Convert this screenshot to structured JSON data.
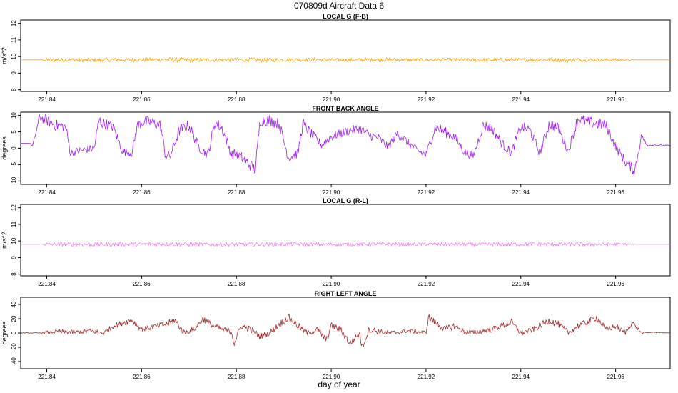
{
  "chart_data": {
    "title": "070809d    Aircraft Data 6",
    "xlabel": "day of year",
    "x_range": [
      221.8345,
      221.9715
    ],
    "x_ticks": [
      "221.84",
      "221.86",
      "221.88",
      "221.90",
      "221.92",
      "221.94",
      "221.96"
    ],
    "x_tick_values": [
      221.84,
      221.86,
      221.88,
      221.9,
      221.92,
      221.94,
      221.96
    ],
    "panels": [
      {
        "type": "line",
        "title": "LOCAL G (F-B)",
        "ylabel": "m/s^2",
        "ylim": [
          7.9,
          12.2
        ],
        "y_ticks": [
          "8",
          "9",
          "10",
          "11",
          "12"
        ],
        "y_tick_values": [
          8,
          9,
          10,
          11,
          12
        ],
        "color": "#FFA500",
        "series": [
          {
            "x": [
              221.8345,
              221.8385,
              221.84,
              221.845,
              221.85,
              221.855,
              221.86,
              221.865,
              221.87,
              221.875,
              221.88,
              221.885,
              221.89,
              221.895,
              221.9,
              221.905,
              221.91,
              221.915,
              221.92,
              221.925,
              221.93,
              221.935,
              221.94,
              221.945,
              221.95,
              221.955,
              221.96,
              221.9655,
              221.9715
            ],
            "y": [
              9.8,
              9.8,
              9.8,
              9.8,
              9.78,
              9.81,
              9.8,
              9.82,
              9.79,
              9.8,
              9.81,
              9.79,
              9.8,
              9.81,
              9.8,
              9.79,
              9.82,
              9.8,
              9.8,
              9.81,
              9.79,
              9.8,
              9.8,
              9.81,
              9.79,
              9.8,
              9.8,
              9.8,
              9.8
            ],
            "noise": [
              0.0,
              0.0,
              0.1,
              0.12,
              0.13,
              0.12,
              0.12,
              0.13,
              0.14,
              0.12,
              0.12,
              0.13,
              0.12,
              0.11,
              0.1,
              0.11,
              0.12,
              0.11,
              0.1,
              0.1,
              0.11,
              0.12,
              0.11,
              0.12,
              0.12,
              0.1,
              0.09,
              0.0,
              0.0
            ]
          }
        ]
      },
      {
        "type": "line",
        "title": "FRONT-BACK ANGLE",
        "ylabel": "degrees",
        "ylim": [
          -11,
          11
        ],
        "y_ticks": [
          "-10",
          "-5",
          "0",
          "5",
          "10"
        ],
        "y_tick_values": [
          -10,
          -5,
          0,
          5,
          10
        ],
        "color": "#A020F0",
        "series": [
          {
            "x": [
              221.8345,
              221.8365,
              221.837,
              221.8385,
              221.84,
              221.842,
              221.844,
              221.845,
              221.846,
              221.848,
              221.85,
              221.851,
              221.852,
              221.854,
              221.856,
              221.858,
              221.859,
              221.86,
              221.862,
              221.864,
              221.865,
              221.866,
              221.868,
              221.87,
              221.872,
              221.874,
              221.8755,
              221.877,
              221.879,
              221.88,
              221.882,
              221.884,
              221.885,
              221.887,
              221.889,
              221.891,
              221.893,
              221.894,
              221.896,
              221.898,
              221.9,
              221.902,
              221.904,
              221.906,
              221.908,
              221.91,
              221.912,
              221.914,
              221.916,
              221.918,
              221.92,
              221.922,
              221.924,
              221.926,
              221.928,
              221.93,
              221.932,
              221.934,
              221.936,
              221.938,
              221.94,
              221.942,
              221.944,
              221.946,
              221.948,
              221.95,
              221.952,
              221.954,
              221.956,
              221.958,
              221.96,
              221.962,
              221.964,
              221.9655,
              221.9665,
              221.968,
              221.9715
            ],
            "y": [
              1.5,
              1.5,
              0.5,
              9.5,
              8.5,
              7.0,
              6.5,
              -1.5,
              -1.0,
              -0.5,
              0.0,
              8.5,
              7.5,
              6.5,
              -1.0,
              -1.5,
              6.5,
              8.0,
              8.0,
              7.0,
              -2.0,
              -2.5,
              5.5,
              7.0,
              0.5,
              -2.0,
              8.0,
              6.0,
              -2.0,
              -1.5,
              -4.0,
              -6.5,
              8.5,
              8.5,
              7.5,
              -3.0,
              -1.5,
              7.5,
              4.0,
              1.0,
              3.5,
              4.5,
              5.5,
              6.0,
              4.0,
              3.0,
              0.5,
              4.5,
              2.0,
              -0.5,
              -2.0,
              6.5,
              5.0,
              3.5,
              -1.0,
              -2.5,
              7.0,
              6.0,
              1.5,
              -1.5,
              6.5,
              5.5,
              -1.5,
              7.5,
              6.0,
              -1.0,
              9.0,
              8.0,
              7.5,
              7.0,
              0.5,
              -4.0,
              -7.0,
              4.0,
              1.0,
              1.0,
              0.8
            ],
            "noise": [
              0.0,
              0.0,
              0.3,
              1.5,
              1.6,
              1.8,
              1.6,
              1.2,
              1.2,
              1.2,
              1.3,
              1.8,
              1.8,
              1.7,
              1.3,
              1.3,
              1.8,
              1.8,
              1.8,
              1.8,
              1.5,
              1.5,
              1.8,
              1.8,
              1.5,
              1.5,
              1.9,
              1.8,
              1.5,
              1.6,
              1.8,
              1.8,
              1.8,
              1.8,
              1.8,
              1.5,
              1.5,
              1.8,
              1.5,
              1.4,
              1.3,
              1.4,
              1.4,
              1.4,
              1.4,
              1.4,
              1.3,
              1.4,
              1.3,
              1.2,
              1.3,
              1.7,
              1.6,
              1.5,
              1.3,
              1.3,
              1.7,
              1.7,
              1.5,
              1.4,
              1.7,
              1.7,
              1.3,
              1.8,
              1.7,
              1.3,
              1.8,
              1.8,
              1.8,
              1.8,
              1.4,
              1.6,
              1.6,
              1.0,
              0.5,
              0.3,
              0.2
            ]
          }
        ]
      },
      {
        "type": "line",
        "title": "LOCAL G (R-L)",
        "ylabel": "m/s^2",
        "ylim": [
          7.9,
          12.2
        ],
        "y_ticks": [
          "8",
          "9",
          "10",
          "11",
          "12"
        ],
        "y_tick_values": [
          8,
          9,
          10,
          11,
          12
        ],
        "color": "#EE82EE",
        "series": [
          {
            "x": [
              221.8345,
              221.8385,
              221.84,
              221.845,
              221.85,
              221.855,
              221.86,
              221.865,
              221.87,
              221.875,
              221.88,
              221.885,
              221.89,
              221.895,
              221.9,
              221.905,
              221.91,
              221.915,
              221.92,
              221.925,
              221.93,
              221.935,
              221.94,
              221.945,
              221.95,
              221.955,
              221.96,
              221.9655,
              221.9715
            ],
            "y": [
              9.8,
              9.8,
              9.8,
              9.8,
              9.79,
              9.81,
              9.8,
              9.82,
              9.8,
              9.79,
              9.8,
              9.8,
              9.81,
              9.8,
              9.79,
              9.8,
              9.81,
              9.8,
              9.8,
              9.8,
              9.79,
              9.8,
              9.8,
              9.81,
              9.8,
              9.79,
              9.8,
              9.8,
              9.8
            ],
            "noise": [
              0.0,
              0.0,
              0.11,
              0.12,
              0.13,
              0.13,
              0.12,
              0.14,
              0.13,
              0.12,
              0.12,
              0.12,
              0.12,
              0.11,
              0.1,
              0.11,
              0.12,
              0.11,
              0.1,
              0.1,
              0.11,
              0.12,
              0.11,
              0.12,
              0.12,
              0.11,
              0.1,
              0.0,
              0.0
            ]
          }
        ]
      },
      {
        "type": "line",
        "title": "RIGHT-LEFT ANGLE",
        "ylabel": "degrees",
        "ylim": [
          -50,
          50
        ],
        "y_ticks": [
          "-40",
          "-20",
          "0",
          "20",
          "40"
        ],
        "y_tick_values": [
          -40,
          -20,
          0,
          20,
          40
        ],
        "color": "#A52A2A",
        "series": [
          {
            "x": [
              221.8345,
              221.8385,
              221.84,
              221.843,
              221.846,
              221.849,
              221.852,
              221.854,
              221.856,
              221.858,
              221.86,
              221.862,
              221.865,
              221.867,
              221.869,
              221.871,
              221.873,
              221.875,
              221.877,
              221.879,
              221.8795,
              221.881,
              221.883,
              221.885,
              221.887,
              221.889,
              221.891,
              221.893,
              221.895,
              221.897,
              221.899,
              221.9,
              221.902,
              221.904,
              221.906,
              221.9065,
              221.908,
              221.91,
              221.912,
              221.914,
              221.916,
              221.918,
              221.92,
              221.9205,
              221.922,
              221.924,
              221.926,
              221.928,
              221.93,
              221.932,
              221.934,
              221.936,
              221.938,
              221.94,
              221.942,
              221.944,
              221.946,
              221.948,
              221.95,
              221.952,
              221.954,
              221.956,
              221.958,
              221.96,
              221.962,
              221.9635,
              221.9655,
              221.968,
              221.9715
            ],
            "y": [
              0,
              0,
              1,
              2,
              1,
              3,
              0,
              10,
              14,
              18,
              5,
              8,
              12,
              18,
              0,
              5,
              20,
              10,
              5,
              2,
              -15,
              10,
              5,
              -5,
              0,
              12,
              22,
              10,
              0,
              5,
              -10,
              10,
              5,
              -15,
              0,
              -20,
              5,
              2,
              0,
              1,
              3,
              2,
              0,
              22,
              15,
              5,
              10,
              2,
              0,
              3,
              5,
              10,
              15,
              0,
              3,
              10,
              18,
              12,
              0,
              10,
              15,
              22,
              5,
              10,
              0,
              15,
              0,
              1,
              0
            ],
            "noise": [
              0.5,
              0.5,
              2,
              3,
              3,
              3.5,
              3,
              4,
              4,
              4.5,
              3.5,
              4,
              4.5,
              5,
              4,
              4,
              5,
              4.5,
              4,
              4,
              5,
              5,
              4.5,
              4.5,
              4,
              5,
              5,
              5,
              4.5,
              4.5,
              5,
              5,
              5,
              5,
              5,
              5,
              5,
              4,
              3,
              3,
              3,
              3,
              3,
              5,
              5,
              4.5,
              4.5,
              4,
              3.5,
              3.5,
              4,
              4.5,
              5,
              4,
              4,
              4.5,
              5,
              5,
              4,
              4.5,
              5,
              5,
              4.5,
              4.5,
              3.5,
              3,
              1.5,
              0.5,
              0.3
            ]
          }
        ]
      }
    ]
  }
}
